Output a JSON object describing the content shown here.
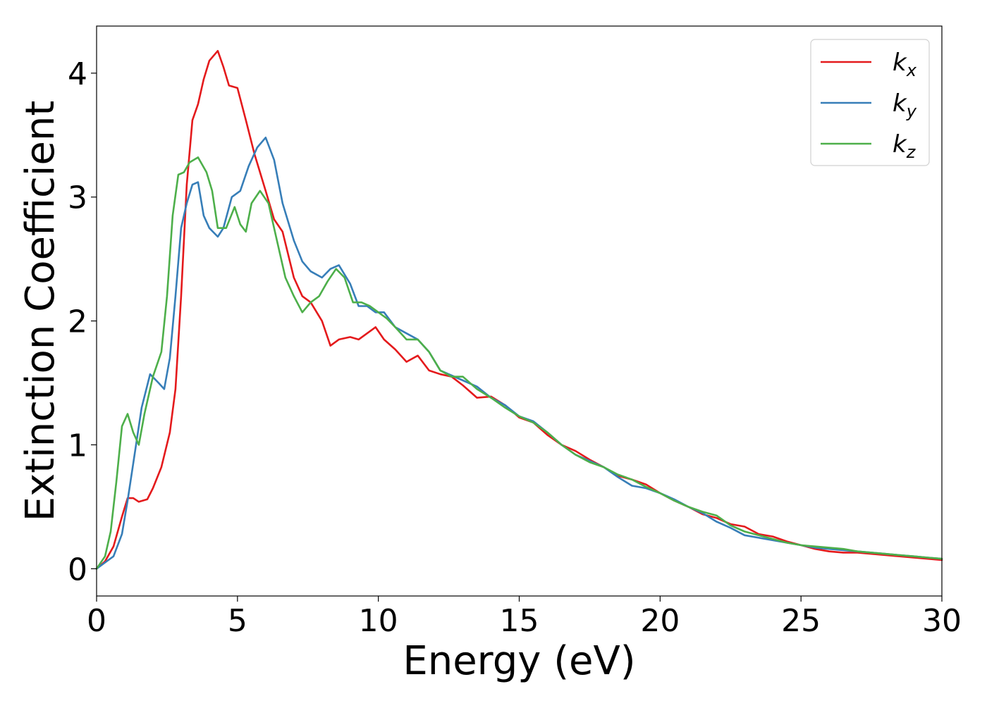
{
  "chart_data": {
    "type": "line",
    "title": "",
    "xlabel": "Energy (eV)",
    "ylabel": "Extinction Coefficient",
    "xlim": [
      0,
      30
    ],
    "ylim": [
      -0.22,
      4.38
    ],
    "xticks": [
      0,
      5,
      10,
      15,
      20,
      25,
      30
    ],
    "yticks": [
      0,
      1,
      2,
      3,
      4
    ],
    "grid": false,
    "legend_position": "top-right",
    "series": [
      {
        "name": "k_x",
        "label_main": "k",
        "label_sub": "x",
        "color": "#e41a1c",
        "x": [
          0,
          0.3,
          0.6,
          0.9,
          1.1,
          1.3,
          1.5,
          1.8,
          2.0,
          2.3,
          2.6,
          2.8,
          3.0,
          3.2,
          3.4,
          3.6,
          3.8,
          4.0,
          4.3,
          4.5,
          4.7,
          5.0,
          5.3,
          5.6,
          6.0,
          6.3,
          6.6,
          7.0,
          7.3,
          7.6,
          8.0,
          8.3,
          8.6,
          9.0,
          9.3,
          9.6,
          9.9,
          10.2,
          10.6,
          11.0,
          11.4,
          11.8,
          12.2,
          12.6,
          13.0,
          13.5,
          14.0,
          14.5,
          15.0,
          15.5,
          16.0,
          16.5,
          17.0,
          17.5,
          18.0,
          18.5,
          19.0,
          19.5,
          20.0,
          20.5,
          21.0,
          21.5,
          22.0,
          22.5,
          23.0,
          23.5,
          24.0,
          24.5,
          25.0,
          25.5,
          26.0,
          26.5,
          27.0,
          27.5,
          28.0,
          28.5,
          29.0,
          29.5,
          30.0
        ],
        "y": [
          0.0,
          0.06,
          0.18,
          0.42,
          0.57,
          0.57,
          0.54,
          0.56,
          0.65,
          0.82,
          1.1,
          1.45,
          2.2,
          3.1,
          3.62,
          3.75,
          3.95,
          4.1,
          4.18,
          4.05,
          3.9,
          3.88,
          3.62,
          3.35,
          3.05,
          2.82,
          2.72,
          2.35,
          2.2,
          2.15,
          2.0,
          1.8,
          1.85,
          1.87,
          1.85,
          1.9,
          1.95,
          1.85,
          1.77,
          1.67,
          1.72,
          1.6,
          1.57,
          1.55,
          1.48,
          1.38,
          1.39,
          1.32,
          1.22,
          1.18,
          1.08,
          1.0,
          0.95,
          0.88,
          0.82,
          0.75,
          0.72,
          0.68,
          0.61,
          0.55,
          0.5,
          0.44,
          0.41,
          0.36,
          0.34,
          0.28,
          0.26,
          0.22,
          0.19,
          0.16,
          0.14,
          0.13,
          0.13,
          0.12,
          0.11,
          0.1,
          0.09,
          0.08,
          0.07
        ]
      },
      {
        "name": "k_y",
        "label_main": "k",
        "label_sub": "y",
        "color": "#377eb8",
        "x": [
          0,
          0.3,
          0.6,
          0.9,
          1.1,
          1.3,
          1.6,
          1.9,
          2.2,
          2.4,
          2.6,
          2.8,
          3.0,
          3.2,
          3.4,
          3.6,
          3.8,
          4.0,
          4.3,
          4.5,
          4.8,
          5.1,
          5.4,
          5.7,
          6.0,
          6.3,
          6.6,
          7.0,
          7.3,
          7.6,
          8.0,
          8.3,
          8.6,
          9.0,
          9.3,
          9.6,
          9.9,
          10.2,
          10.6,
          11.0,
          11.4,
          11.8,
          12.2,
          12.6,
          13.0,
          13.5,
          14.0,
          14.5,
          15.0,
          15.5,
          16.0,
          16.5,
          17.0,
          17.5,
          18.0,
          18.5,
          19.0,
          19.5,
          20.0,
          20.5,
          21.0,
          21.5,
          22.0,
          22.5,
          23.0,
          23.5,
          24.0,
          24.5,
          25.0,
          25.5,
          26.0,
          26.5,
          27.0,
          27.5,
          28.0,
          28.5,
          29.0,
          29.5,
          30.0
        ],
        "y": [
          0.0,
          0.05,
          0.1,
          0.28,
          0.55,
          0.85,
          1.3,
          1.57,
          1.5,
          1.45,
          1.7,
          2.2,
          2.75,
          2.95,
          3.1,
          3.12,
          2.85,
          2.75,
          2.68,
          2.75,
          3.0,
          3.05,
          3.25,
          3.4,
          3.48,
          3.3,
          2.95,
          2.65,
          2.48,
          2.4,
          2.35,
          2.42,
          2.45,
          2.3,
          2.12,
          2.12,
          2.07,
          2.07,
          1.95,
          1.9,
          1.85,
          1.75,
          1.6,
          1.56,
          1.52,
          1.47,
          1.38,
          1.32,
          1.23,
          1.19,
          1.1,
          1.0,
          0.92,
          0.87,
          0.82,
          0.74,
          0.67,
          0.65,
          0.61,
          0.56,
          0.5,
          0.45,
          0.38,
          0.33,
          0.27,
          0.25,
          0.23,
          0.21,
          0.19,
          0.17,
          0.16,
          0.15,
          0.14,
          0.13,
          0.12,
          0.11,
          0.1,
          0.09,
          0.08
        ]
      },
      {
        "name": "k_z",
        "label_main": "k",
        "label_sub": "z",
        "color": "#4daf4a",
        "x": [
          0,
          0.3,
          0.5,
          0.7,
          0.9,
          1.1,
          1.3,
          1.5,
          1.7,
          2.0,
          2.3,
          2.5,
          2.7,
          2.9,
          3.1,
          3.3,
          3.6,
          3.9,
          4.1,
          4.3,
          4.6,
          4.9,
          5.1,
          5.3,
          5.5,
          5.8,
          6.1,
          6.4,
          6.7,
          7.0,
          7.3,
          7.6,
          7.9,
          8.2,
          8.5,
          8.8,
          9.1,
          9.4,
          9.7,
          10.0,
          10.3,
          10.6,
          11.0,
          11.4,
          11.8,
          12.2,
          12.6,
          13.0,
          13.5,
          14.0,
          14.5,
          15.0,
          15.5,
          16.0,
          16.5,
          17.0,
          17.5,
          18.0,
          18.5,
          19.0,
          19.5,
          20.0,
          20.5,
          21.0,
          21.5,
          22.0,
          22.5,
          23.0,
          23.5,
          24.0,
          24.5,
          25.0,
          25.5,
          26.0,
          26.5,
          27.0,
          27.5,
          28.0,
          28.5,
          29.0,
          29.5,
          30.0
        ],
        "y": [
          0.0,
          0.1,
          0.3,
          0.7,
          1.15,
          1.25,
          1.1,
          1.0,
          1.25,
          1.55,
          1.75,
          2.2,
          2.85,
          3.18,
          3.2,
          3.28,
          3.32,
          3.2,
          3.05,
          2.75,
          2.75,
          2.92,
          2.78,
          2.72,
          2.95,
          3.05,
          2.95,
          2.65,
          2.35,
          2.2,
          2.07,
          2.15,
          2.2,
          2.32,
          2.42,
          2.35,
          2.15,
          2.15,
          2.12,
          2.07,
          2.02,
          1.95,
          1.85,
          1.85,
          1.75,
          1.6,
          1.55,
          1.55,
          1.45,
          1.38,
          1.3,
          1.23,
          1.18,
          1.1,
          1.0,
          0.92,
          0.86,
          0.82,
          0.76,
          0.72,
          0.66,
          0.61,
          0.55,
          0.5,
          0.46,
          0.43,
          0.35,
          0.3,
          0.27,
          0.24,
          0.21,
          0.19,
          0.18,
          0.17,
          0.16,
          0.14,
          0.13,
          0.12,
          0.11,
          0.1,
          0.09,
          0.08
        ]
      }
    ]
  }
}
